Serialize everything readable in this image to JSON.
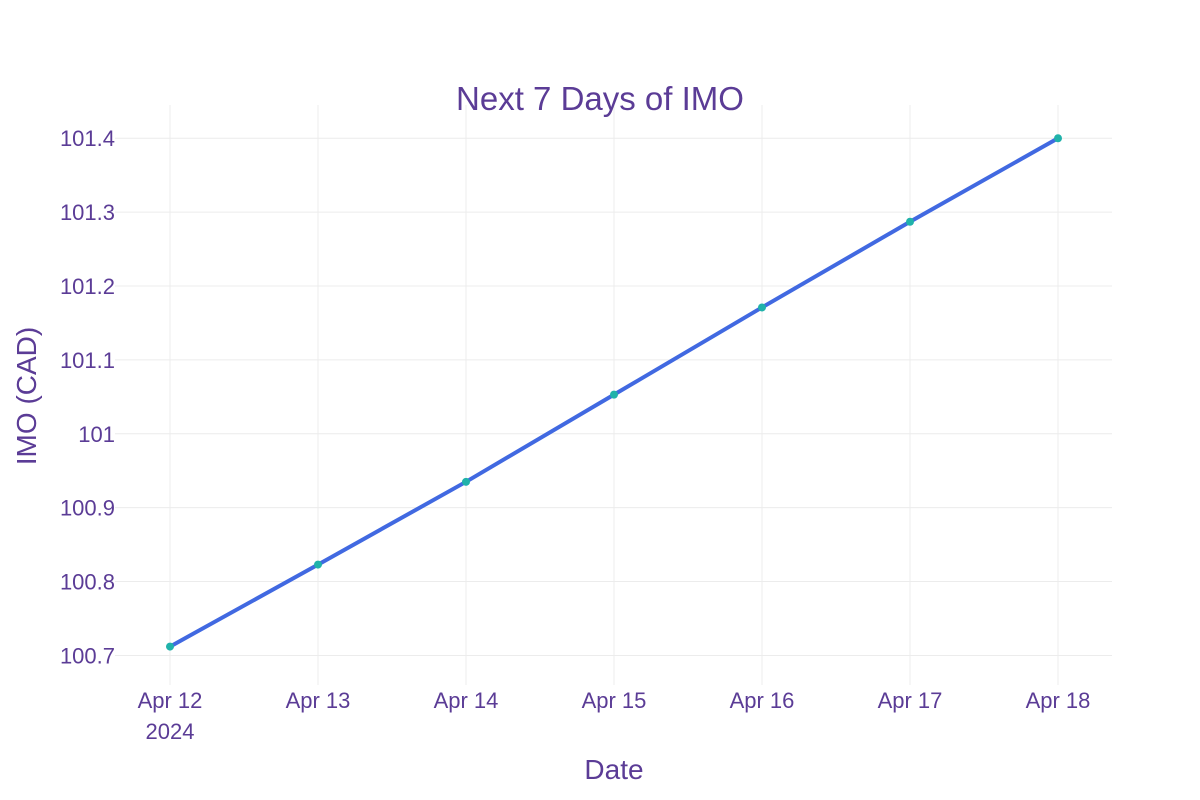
{
  "colors": {
    "text": "#5b3c96",
    "line": "#4169e1",
    "marker": "#20b2aa",
    "grid": "#ececec",
    "background": "#ffffff"
  },
  "chart_data": {
    "type": "line",
    "title": "Next 7 Days of IMO",
    "xlabel": "Date",
    "ylabel": "IMO (CAD)",
    "x": [
      "2024-04-12",
      "2024-04-13",
      "2024-04-14",
      "2024-04-15",
      "2024-04-16",
      "2024-04-17",
      "2024-04-18"
    ],
    "x_tick_labels": [
      "Apr 12",
      "Apr 13",
      "Apr 14",
      "Apr 15",
      "Apr 16",
      "Apr 17",
      "Apr 18"
    ],
    "x_tick_sublabel": "2024",
    "y_ticks": [
      100.7,
      100.8,
      100.9,
      101,
      101.1,
      101.2,
      101.3,
      101.4
    ],
    "y_tick_labels": [
      "100.7",
      "100.8",
      "100.9",
      "101",
      "101.1",
      "101.2",
      "101.3",
      "101.4"
    ],
    "ylim": [
      100.66,
      101.445
    ],
    "grid": true,
    "legend": "none",
    "series": [
      {
        "values": [
          100.712,
          100.823,
          100.935,
          101.053,
          101.171,
          101.287,
          101.4
        ]
      }
    ]
  }
}
